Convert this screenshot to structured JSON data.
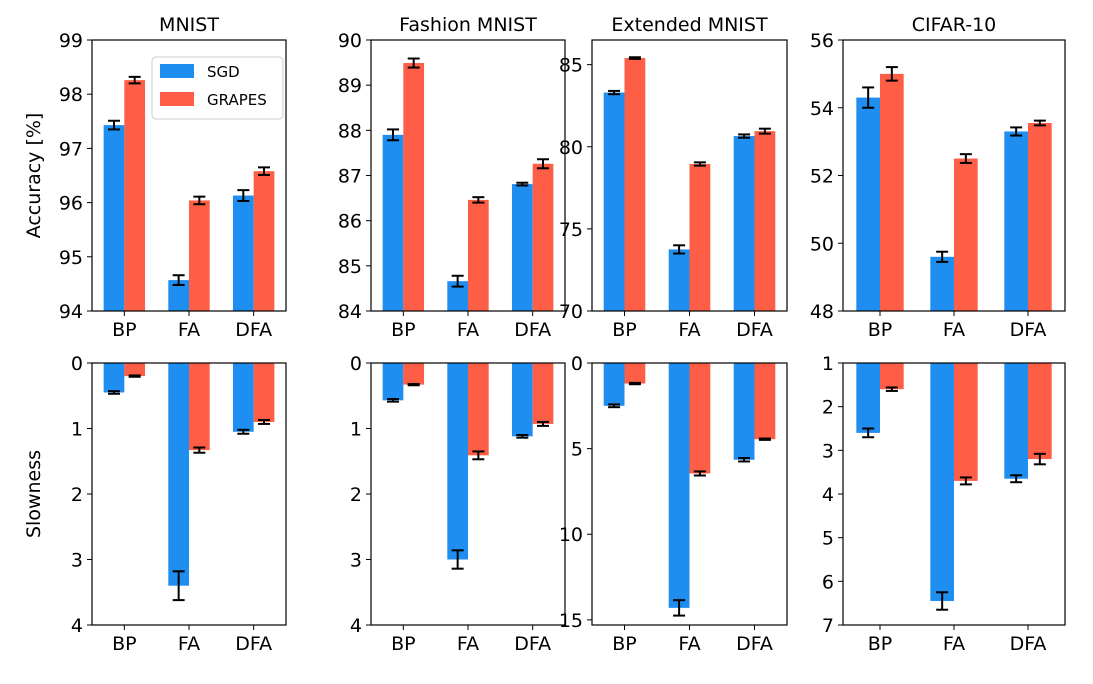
{
  "colors": {
    "sgd": "#1f8ef1",
    "grapes": "#fe5e45"
  },
  "legend": {
    "position": "top-right",
    "labels": [
      "SGD",
      "GRAPES"
    ]
  },
  "chart_data": [
    {
      "type": "bar",
      "title": "MNIST",
      "ylabel": "Accuracy [%]",
      "ylim": [
        94,
        99
      ],
      "inverted": false,
      "yticks": [
        94,
        95,
        96,
        97,
        98,
        99
      ],
      "categories": [
        "BP",
        "FA",
        "DFA"
      ],
      "series": [
        {
          "name": "SGD",
          "values": [
            97.43,
            94.57,
            96.13
          ],
          "errors": [
            0.08,
            0.09,
            0.1
          ]
        },
        {
          "name": "GRAPES",
          "values": [
            98.26,
            96.04,
            96.58
          ],
          "errors": [
            0.06,
            0.07,
            0.07
          ]
        }
      ]
    },
    {
      "type": "bar",
      "title": "Fashion MNIST",
      "ylabel": "",
      "ylim": [
        84,
        90
      ],
      "inverted": false,
      "yticks": [
        84,
        85,
        86,
        87,
        88,
        89,
        90
      ],
      "categories": [
        "BP",
        "FA",
        "DFA"
      ],
      "series": [
        {
          "name": "SGD",
          "values": [
            87.9,
            84.66,
            86.81
          ],
          "errors": [
            0.12,
            0.12,
            0.03
          ]
        },
        {
          "name": "GRAPES",
          "values": [
            89.49,
            86.46,
            87.26
          ],
          "errors": [
            0.1,
            0.06,
            0.1
          ]
        }
      ]
    },
    {
      "type": "bar",
      "title": "Extended MNIST",
      "ylabel": "",
      "ylim": [
        70,
        86.5
      ],
      "inverted": false,
      "yticks": [
        70,
        75,
        80,
        85
      ],
      "categories": [
        "BP",
        "FA",
        "DFA"
      ],
      "series": [
        {
          "name": "SGD",
          "values": [
            83.3,
            73.75,
            80.65
          ],
          "errors": [
            0.1,
            0.25,
            0.1
          ]
        },
        {
          "name": "GRAPES",
          "values": [
            85.4,
            78.95,
            80.95
          ],
          "errors": [
            0.05,
            0.1,
            0.15
          ]
        }
      ]
    },
    {
      "type": "bar",
      "title": "CIFAR-10",
      "ylabel": "",
      "ylim": [
        48,
        56
      ],
      "inverted": false,
      "yticks": [
        48,
        50,
        52,
        54,
        56
      ],
      "categories": [
        "BP",
        "FA",
        "DFA"
      ],
      "series": [
        {
          "name": "SGD",
          "values": [
            54.3,
            49.6,
            53.3
          ],
          "errors": [
            0.3,
            0.15,
            0.12
          ]
        },
        {
          "name": "GRAPES",
          "values": [
            55.0,
            52.5,
            53.55
          ],
          "errors": [
            0.2,
            0.13,
            0.07
          ]
        }
      ]
    },
    {
      "type": "bar",
      "title": "",
      "ylabel": "Slowness",
      "ylim": [
        0,
        4
      ],
      "inverted": true,
      "yticks": [
        0,
        1,
        2,
        3,
        4
      ],
      "categories": [
        "BP",
        "FA",
        "DFA"
      ],
      "series": [
        {
          "name": "SGD",
          "values": [
            0.45,
            3.4,
            1.05
          ],
          "errors": [
            0.02,
            0.22,
            0.03
          ]
        },
        {
          "name": "GRAPES",
          "values": [
            0.2,
            1.33,
            0.9
          ],
          "errors": [
            0.01,
            0.04,
            0.03
          ]
        }
      ]
    },
    {
      "type": "bar",
      "title": "",
      "ylabel": "",
      "ylim": [
        0,
        4
      ],
      "inverted": true,
      "yticks": [
        0,
        1,
        2,
        3,
        4
      ],
      "categories": [
        "BP",
        "FA",
        "DFA"
      ],
      "series": [
        {
          "name": "SGD",
          "values": [
            0.57,
            3.0,
            1.12
          ],
          "errors": [
            0.02,
            0.14,
            0.02
          ]
        },
        {
          "name": "GRAPES",
          "values": [
            0.33,
            1.41,
            0.93
          ],
          "errors": [
            0.01,
            0.06,
            0.03
          ]
        }
      ]
    },
    {
      "type": "bar",
      "title": "",
      "ylabel": "",
      "ylim": [
        0,
        15.3
      ],
      "inverted": true,
      "yticks": [
        0,
        5,
        10,
        15
      ],
      "categories": [
        "BP",
        "FA",
        "DFA"
      ],
      "series": [
        {
          "name": "SGD",
          "values": [
            2.5,
            14.3,
            5.65
          ],
          "errors": [
            0.08,
            0.45,
            0.1
          ]
        },
        {
          "name": "GRAPES",
          "values": [
            1.2,
            6.45,
            4.45
          ],
          "errors": [
            0.04,
            0.12,
            0.04
          ]
        }
      ]
    },
    {
      "type": "bar",
      "title": "",
      "ylabel": "",
      "ylim": [
        1,
        7
      ],
      "inverted": true,
      "yticks": [
        1,
        2,
        3,
        4,
        5,
        6,
        7
      ],
      "categories": [
        "BP",
        "FA",
        "DFA"
      ],
      "series": [
        {
          "name": "SGD",
          "values": [
            2.6,
            6.45,
            3.65
          ],
          "errors": [
            0.1,
            0.2,
            0.08
          ]
        },
        {
          "name": "GRAPES",
          "values": [
            1.6,
            3.7,
            3.2
          ],
          "errors": [
            0.04,
            0.08,
            0.12
          ]
        }
      ]
    }
  ]
}
